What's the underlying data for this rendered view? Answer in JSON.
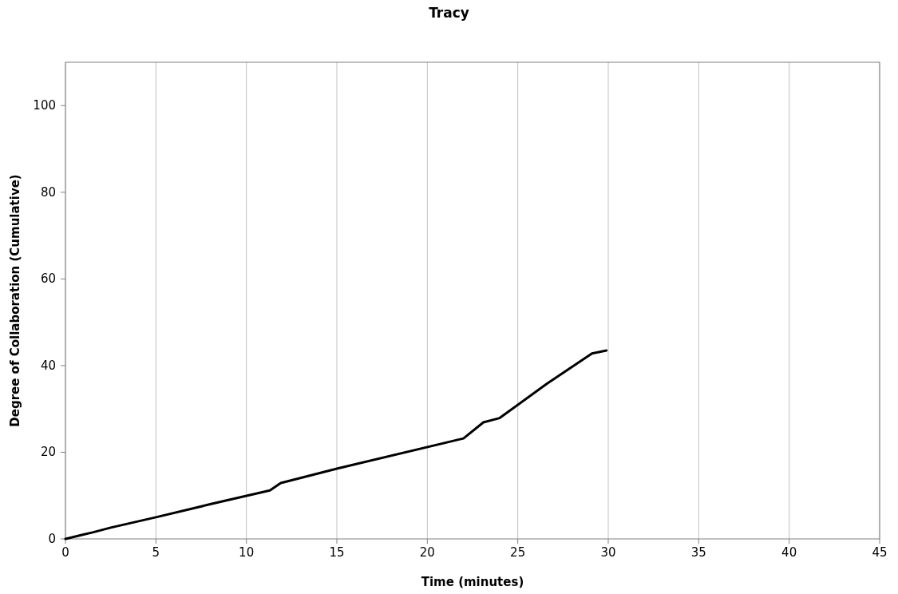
{
  "chart_data": {
    "type": "line",
    "title": "Tracy",
    "xlabel": "Time (minutes)",
    "ylabel": "Degree of Collaboration (Cumulative)",
    "x": [
      0,
      1,
      1.5,
      2.5,
      5,
      8,
      11.3,
      11.9,
      15,
      22,
      23.1,
      24,
      26.6,
      29.1,
      29.9
    ],
    "series": [
      {
        "color": "#000000",
        "values": [
          0,
          1,
          1.5,
          2.6,
          5,
          8,
          11.2,
          12.9,
          16.2,
          23.2,
          26.9,
          27.9,
          35.8,
          42.8,
          43.5
        ]
      }
    ],
    "xlim": [
      0,
      45
    ],
    "xticks": [
      0,
      5,
      10,
      15,
      20,
      25,
      30,
      35,
      40,
      45
    ],
    "ylim": [
      0,
      110
    ],
    "yticks": [
      0,
      20,
      40,
      60,
      80,
      100
    ],
    "grid": "x",
    "marker": "none",
    "line_style": "solid"
  }
}
